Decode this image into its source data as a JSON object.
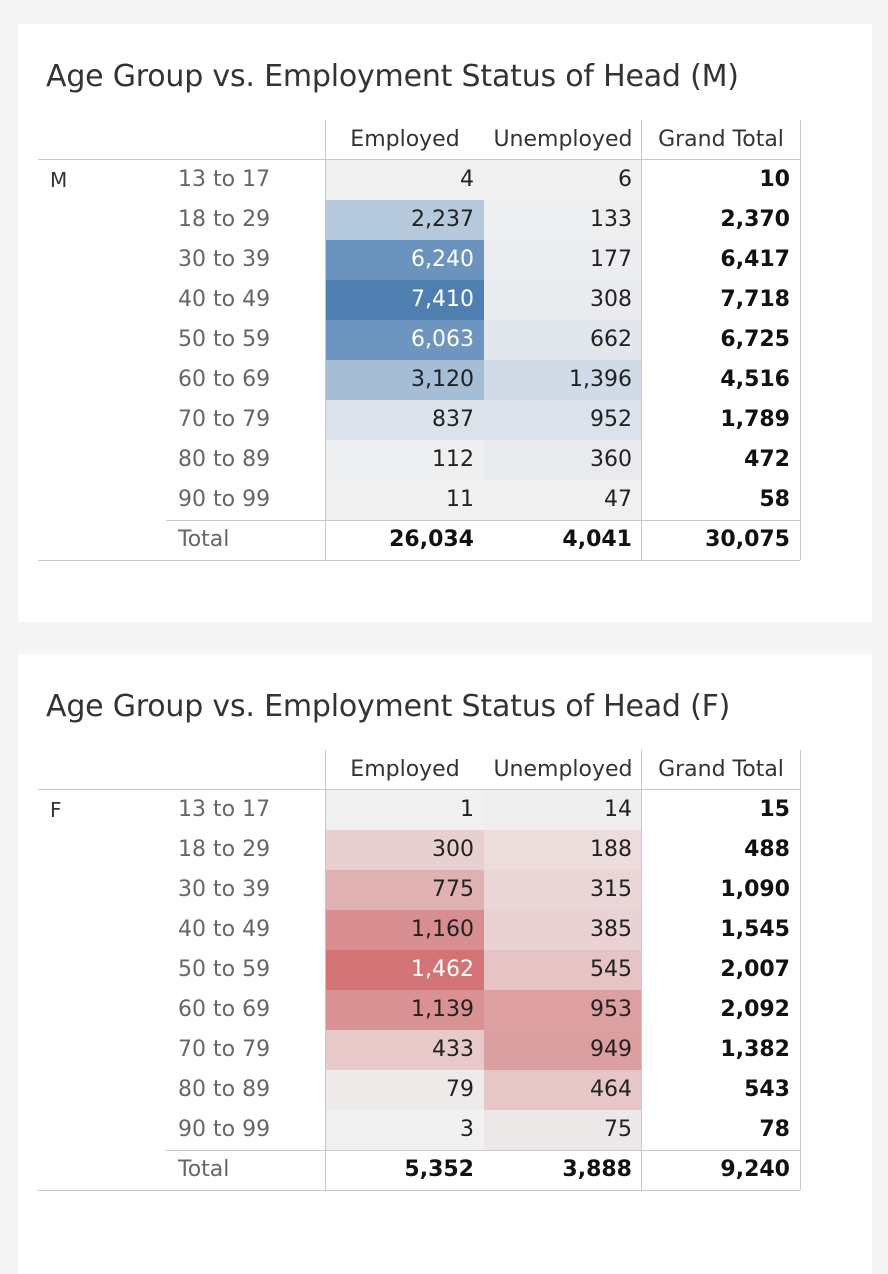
{
  "tables": [
    {
      "title": "Age Group vs. Employment Status of Head (M)",
      "segment": "M",
      "columns": [
        "Employed",
        "Unemployed",
        "Grand Total"
      ],
      "rows": [
        {
          "age": "13 to 17",
          "employed": "4",
          "unemployed": "6",
          "total": "10",
          "emp_fill": "#f0f0f0",
          "emp_text": "dark",
          "unemp_fill": "#f0f0f0"
        },
        {
          "age": "18 to 29",
          "employed": "2,237",
          "unemployed": "133",
          "total": "2,370",
          "emp_fill": "#b7c9dc",
          "emp_text": "dark",
          "unemp_fill": "#eeeff1"
        },
        {
          "age": "30 to 39",
          "employed": "6,240",
          "unemployed": "177",
          "total": "6,417",
          "emp_fill": "#6a93bd",
          "emp_text": "light",
          "unemp_fill": "#ebedf0"
        },
        {
          "age": "40 to 49",
          "employed": "7,410",
          "unemployed": "308",
          "total": "7,718",
          "emp_fill": "#4f7fb0",
          "emp_text": "light",
          "unemp_fill": "#e9ebef"
        },
        {
          "age": "50 to 59",
          "employed": "6,063",
          "unemployed": "662",
          "total": "6,725",
          "emp_fill": "#6e95bf",
          "emp_text": "light",
          "unemp_fill": "#e2e7ee"
        },
        {
          "age": "60 to 69",
          "employed": "3,120",
          "unemployed": "1,396",
          "total": "4,516",
          "emp_fill": "#a6bdd6",
          "emp_text": "dark",
          "unemp_fill": "#d0dbe7"
        },
        {
          "age": "70 to 79",
          "employed": "837",
          "unemployed": "952",
          "total": "1,789",
          "emp_fill": "#dbe2ea",
          "emp_text": "dark",
          "unemp_fill": "#dbe2eb"
        },
        {
          "age": "80 to 89",
          "employed": "112",
          "unemployed": "360",
          "total": "472",
          "emp_fill": "#eeeff1",
          "emp_text": "dark",
          "unemp_fill": "#e8eaee"
        },
        {
          "age": "90 to 99",
          "employed": "11",
          "unemployed": "47",
          "total": "58",
          "emp_fill": "#f0f0f0",
          "emp_text": "dark",
          "unemp_fill": "#f0f0f0"
        }
      ],
      "total_row": {
        "label": "Total",
        "employed": "26,034",
        "unemployed": "4,041",
        "total": "30,075"
      }
    },
    {
      "title": "Age Group vs. Employment Status of Head (F)",
      "segment": "F",
      "columns": [
        "Employed",
        "Unemployed",
        "Grand Total"
      ],
      "rows": [
        {
          "age": "13 to 17",
          "employed": "1",
          "unemployed": "14",
          "total": "15",
          "emp_fill": "#f0f0f0",
          "emp_text": "dark",
          "unemp_fill": "#efeeee"
        },
        {
          "age": "18 to 29",
          "employed": "300",
          "unemployed": "188",
          "total": "488",
          "emp_fill": "#e8cfd0",
          "emp_text": "dark",
          "unemp_fill": "#ecdcdc"
        },
        {
          "age": "30 to 39",
          "employed": "775",
          "unemployed": "315",
          "total": "1,090",
          "emp_fill": "#e0b1b3",
          "emp_text": "dark",
          "unemp_fill": "#ead6d7"
        },
        {
          "age": "40 to 49",
          "employed": "1,160",
          "unemployed": "385",
          "total": "1,545",
          "emp_fill": "#d88e90",
          "emp_text": "dark",
          "unemp_fill": "#e9d2d3"
        },
        {
          "age": "50 to 59",
          "employed": "1,462",
          "unemployed": "545",
          "total": "2,007",
          "emp_fill": "#d27375",
          "emp_text": "light",
          "unemp_fill": "#e6c4c5"
        },
        {
          "age": "60 to 69",
          "employed": "1,139",
          "unemployed": "953",
          "total": "2,092",
          "emp_fill": "#d99193",
          "emp_text": "dark",
          "unemp_fill": "#dd9fa1"
        },
        {
          "age": "70 to 79",
          "employed": "433",
          "unemployed": "949",
          "total": "1,382",
          "emp_fill": "#e8cacb",
          "emp_text": "dark",
          "unemp_fill": "#dc9fa1"
        },
        {
          "age": "80 to 89",
          "employed": "79",
          "unemployed": "464",
          "total": "543",
          "emp_fill": "#eeeaea",
          "emp_text": "dark",
          "unemp_fill": "#e6c6c7"
        },
        {
          "age": "90 to 99",
          "employed": "3",
          "unemployed": "75",
          "total": "78",
          "emp_fill": "#f0f0f0",
          "emp_text": "dark",
          "unemp_fill": "#ede8e8"
        }
      ],
      "total_row": {
        "label": "Total",
        "employed": "5,352",
        "unemployed": "3,888",
        "total": "9,240"
      }
    }
  ],
  "chart_data": [
    {
      "type": "heatmap",
      "title": "Age Group vs. Employment Status of Head (M)",
      "rows": [
        "13 to 17",
        "18 to 29",
        "30 to 39",
        "40 to 49",
        "50 to 59",
        "60 to 69",
        "70 to 79",
        "80 to 89",
        "90 to 99"
      ],
      "columns": [
        "Employed",
        "Unemployed",
        "Grand Total"
      ],
      "series": [
        {
          "name": "Employed",
          "values": [
            4,
            2237,
            6240,
            7410,
            6063,
            3120,
            837,
            112,
            11
          ]
        },
        {
          "name": "Unemployed",
          "values": [
            6,
            133,
            177,
            308,
            662,
            1396,
            952,
            360,
            47
          ]
        },
        {
          "name": "Grand Total",
          "values": [
            10,
            2370,
            6417,
            7718,
            6725,
            4516,
            1789,
            472,
            58
          ]
        }
      ],
      "totals": {
        "Employed": 26034,
        "Unemployed": 4041,
        "Grand Total": 30075
      },
      "color": "#4f7fb0"
    },
    {
      "type": "heatmap",
      "title": "Age Group vs. Employment Status of Head (F)",
      "rows": [
        "13 to 17",
        "18 to 29",
        "30 to 39",
        "40 to 49",
        "50 to 59",
        "60 to 69",
        "70 to 79",
        "80 to 89",
        "90 to 99"
      ],
      "columns": [
        "Employed",
        "Unemployed",
        "Grand Total"
      ],
      "series": [
        {
          "name": "Employed",
          "values": [
            1,
            300,
            775,
            1160,
            1462,
            1139,
            433,
            79,
            3
          ]
        },
        {
          "name": "Unemployed",
          "values": [
            14,
            188,
            315,
            385,
            545,
            953,
            949,
            464,
            75
          ]
        },
        {
          "name": "Grand Total",
          "values": [
            15,
            488,
            1090,
            1545,
            2007,
            2092,
            1382,
            543,
            78
          ]
        }
      ],
      "totals": {
        "Employed": 5352,
        "Unemployed": 3888,
        "Grand Total": 9240
      },
      "color": "#d27375"
    }
  ]
}
